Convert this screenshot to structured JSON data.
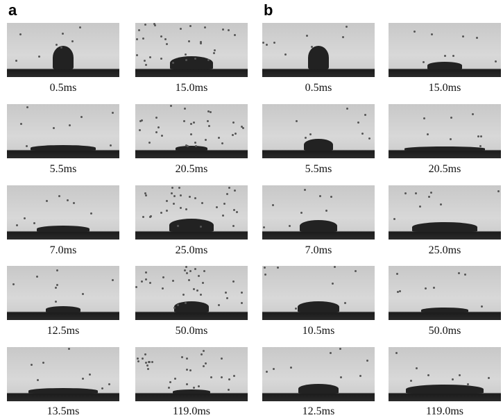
{
  "panels": [
    {
      "label": "a",
      "columns": [
        [
          "0.5ms",
          "5.5ms",
          "7.0ms",
          "12.5ms",
          "13.5ms"
        ],
        [
          "15.0ms",
          "20.5ms",
          "25.0ms",
          "50.0ms",
          "119.0ms"
        ]
      ]
    },
    {
      "label": "b",
      "columns": [
        [
          "0.5ms",
          "5.5ms",
          "7.0ms",
          "10.5ms",
          "12.5ms"
        ],
        [
          "15.0ms",
          "20.5ms",
          "25.0ms",
          "50.0ms",
          "119.0ms"
        ]
      ]
    }
  ]
}
